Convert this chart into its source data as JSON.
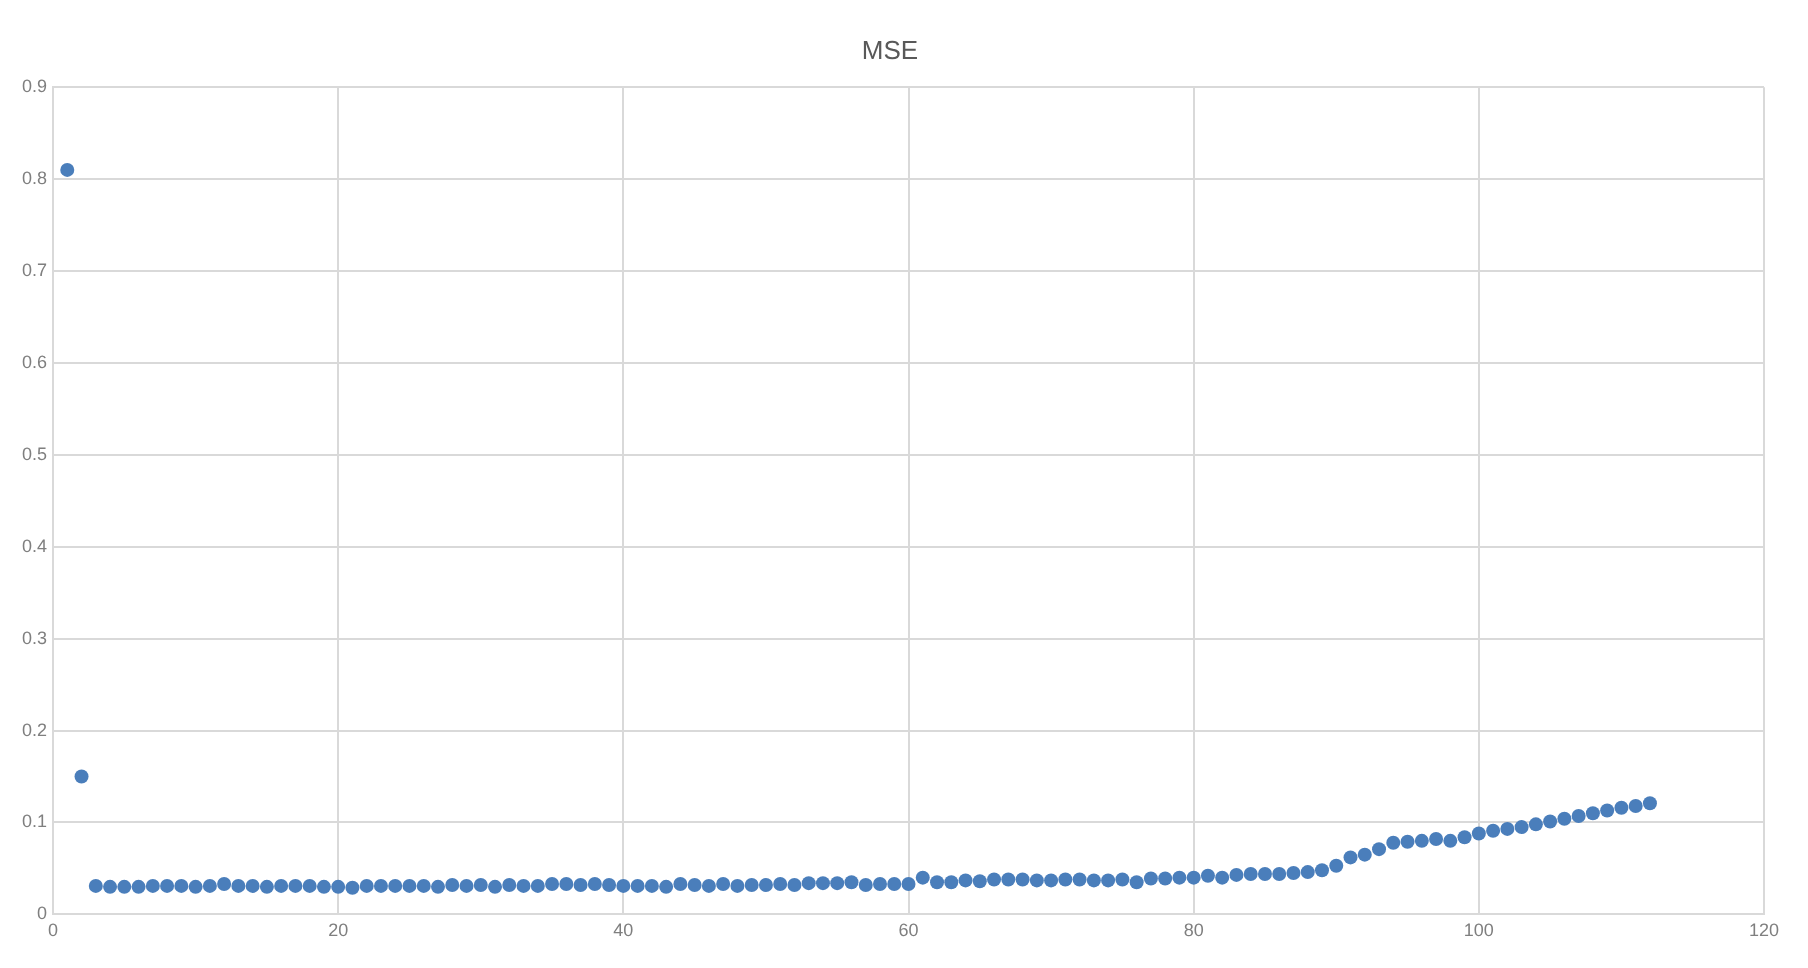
{
  "chart_data": {
    "type": "scatter",
    "title": "MSE",
    "x": [
      1,
      2,
      3,
      4,
      5,
      6,
      7,
      8,
      9,
      10,
      11,
      12,
      13,
      14,
      15,
      16,
      17,
      18,
      19,
      20,
      21,
      22,
      23,
      24,
      25,
      26,
      27,
      28,
      29,
      30,
      31,
      32,
      33,
      34,
      35,
      36,
      37,
      38,
      39,
      40,
      41,
      42,
      43,
      44,
      45,
      46,
      47,
      48,
      49,
      50,
      51,
      52,
      53,
      54,
      55,
      56,
      57,
      58,
      59,
      60,
      61,
      62,
      63,
      64,
      65,
      66,
      67,
      68,
      69,
      70,
      71,
      72,
      73,
      74,
      75,
      76,
      77,
      78,
      79,
      80,
      81,
      82,
      83,
      84,
      85,
      86,
      87,
      88,
      89,
      90,
      91,
      92,
      93,
      94,
      95,
      96,
      97,
      98,
      99,
      100,
      101,
      102,
      103,
      104,
      105,
      106,
      107,
      108,
      109,
      110,
      111,
      112
    ],
    "series": [
      {
        "color": "#4a7ebb",
        "values": [
          0.81,
          0.15,
          0.031,
          0.03,
          0.03,
          0.03,
          0.031,
          0.031,
          0.031,
          0.03,
          0.031,
          0.033,
          0.031,
          0.031,
          0.03,
          0.031,
          0.031,
          0.031,
          0.03,
          0.03,
          0.029,
          0.031,
          0.031,
          0.031,
          0.031,
          0.031,
          0.03,
          0.032,
          0.031,
          0.032,
          0.03,
          0.032,
          0.031,
          0.031,
          0.033,
          0.033,
          0.032,
          0.033,
          0.032,
          0.031,
          0.031,
          0.031,
          0.03,
          0.033,
          0.032,
          0.031,
          0.033,
          0.031,
          0.032,
          0.032,
          0.033,
          0.032,
          0.034,
          0.034,
          0.034,
          0.035,
          0.032,
          0.033,
          0.033,
          0.033,
          0.04,
          0.035,
          0.035,
          0.037,
          0.036,
          0.038,
          0.038,
          0.038,
          0.037,
          0.037,
          0.038,
          0.038,
          0.037,
          0.037,
          0.038,
          0.035,
          0.039,
          0.039,
          0.04,
          0.04,
          0.042,
          0.04,
          0.043,
          0.044,
          0.044,
          0.044,
          0.045,
          0.046,
          0.048,
          0.053,
          0.062,
          0.065,
          0.071,
          0.078,
          0.079,
          0.08,
          0.082,
          0.08,
          0.084,
          0.088,
          0.091,
          0.093,
          0.095,
          0.098,
          0.101,
          0.104,
          0.107,
          0.11,
          0.113,
          0.116,
          0.118,
          0.121
        ]
      }
    ],
    "xlim": [
      0,
      120
    ],
    "xticks": [
      0,
      20,
      40,
      60,
      80,
      100,
      120
    ],
    "ylim": [
      0,
      0.9
    ],
    "yticks": [
      0,
      0.1,
      0.2,
      0.3,
      0.4,
      0.5,
      0.6,
      0.7,
      0.8,
      0.9
    ],
    "grid": true,
    "marker": "circle",
    "legend": false
  }
}
